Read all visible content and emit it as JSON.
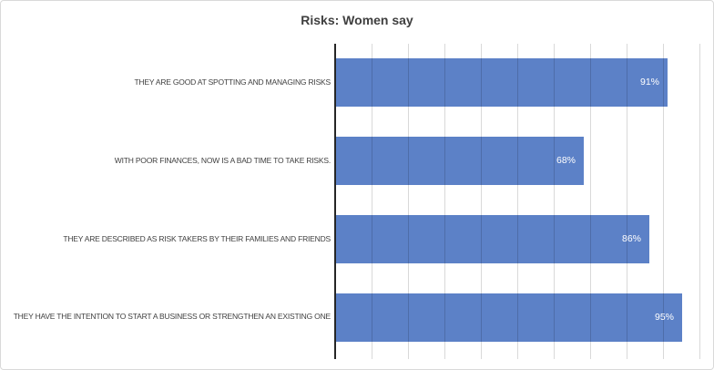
{
  "window": {
    "background": "#FFFFFF",
    "frame_border_color": "#D9D9D9"
  },
  "chart_data": {
    "type": "bar",
    "orientation": "horizontal",
    "title": "Risks: Women say",
    "categories": [
      "THEY ARE GOOD AT SPOTTING AND MANAGING RISKS",
      "WITH POOR FINANCES, NOW IS A BAD TIME TO TAKE RISKS.",
      "THEY ARE DESCRIBED AS RISK TAKERS BY THEIR FAMILIES AND FRIENDS",
      "THEY HAVE THE INTENTION TO START A BUSINESS OR STRENGTHEN AN EXISTING ONE"
    ],
    "values": [
      91,
      68,
      86,
      95
    ],
    "data_labels": [
      "91%",
      "68%",
      "86%",
      "95%"
    ],
    "data_label_position": "inside-end",
    "xlim": [
      0,
      100
    ],
    "x_tick_interval": 10,
    "x_axis_tick_labels_shown": false,
    "grid": true,
    "legend": "none",
    "colors": {
      "bar": "#5C81C7",
      "title": "#3F3F3F",
      "category_label": "#404040",
      "data_label": "#FFFFFF",
      "category_axis_line": "#262626",
      "gridline": "rgba(0,0,0,0.15)"
    }
  }
}
